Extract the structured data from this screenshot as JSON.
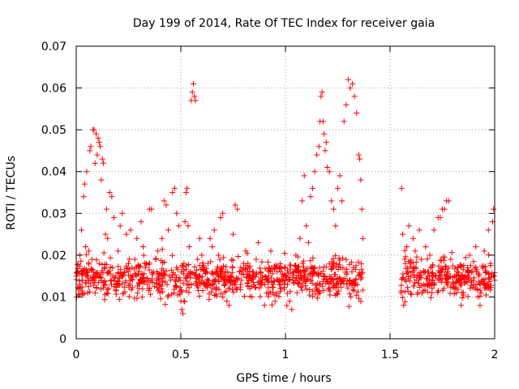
{
  "chart_data": {
    "type": "scatter",
    "title": "Day 199 of 2014, Rate Of TEC Index for receiver gaia",
    "xlabel": "GPS time / hours",
    "ylabel": "ROTI / TECUs",
    "xlim": [
      0,
      2
    ],
    "ylim": [
      0,
      0.07
    ],
    "xticks": [
      0,
      0.5,
      1,
      1.5,
      2
    ],
    "xtick_labels": [
      "0",
      "0.5",
      "1",
      "1.5",
      "2"
    ],
    "yticks": [
      0,
      0.01,
      0.02,
      0.03,
      0.04,
      0.05,
      0.06,
      0.07
    ],
    "ytick_labels": [
      "0",
      "0.01",
      "0.02",
      "0.03",
      "0.04",
      "0.05",
      "0.06",
      "0.07"
    ],
    "grid": true,
    "marker": "+",
    "color": "#ff0000",
    "data_gap": [
      1.375,
      1.55
    ],
    "series": [
      {
        "name": "ROTI",
        "points": [
          [
            0.005,
            0.016
          ],
          [
            0.012,
            0.012
          ],
          [
            0.018,
            0.02
          ],
          [
            0.025,
            0.026
          ],
          [
            0.03,
            0.014
          ],
          [
            0.035,
            0.034
          ],
          [
            0.04,
            0.037
          ],
          [
            0.045,
            0.022
          ],
          [
            0.05,
            0.04
          ],
          [
            0.055,
            0.011
          ],
          [
            0.06,
            0.021
          ],
          [
            0.065,
            0.045
          ],
          [
            0.07,
            0.046
          ],
          [
            0.075,
            0.019
          ],
          [
            0.08,
            0.05
          ],
          [
            0.085,
            0.05
          ],
          [
            0.09,
            0.042
          ],
          [
            0.095,
            0.049
          ],
          [
            0.1,
            0.044
          ],
          [
            0.105,
            0.048
          ],
          [
            0.11,
            0.047
          ],
          [
            0.115,
            0.046
          ],
          [
            0.12,
            0.038
          ],
          [
            0.125,
            0.043
          ],
          [
            0.13,
            0.042
          ],
          [
            0.135,
            0.017
          ],
          [
            0.14,
            0.025
          ],
          [
            0.145,
            0.031
          ],
          [
            0.15,
            0.024
          ],
          [
            0.16,
            0.035
          ],
          [
            0.17,
            0.034
          ],
          [
            0.18,
            0.029
          ],
          [
            0.19,
            0.013
          ],
          [
            0.2,
            0.021
          ],
          [
            0.21,
            0.027
          ],
          [
            0.22,
            0.03
          ],
          [
            0.23,
            0.016
          ],
          [
            0.24,
            0.025
          ],
          [
            0.25,
            0.018
          ],
          [
            0.26,
            0.026
          ],
          [
            0.27,
            0.015
          ],
          [
            0.28,
            0.019
          ],
          [
            0.29,
            0.024
          ],
          [
            0.3,
            0.012
          ],
          [
            0.31,
            0.028
          ],
          [
            0.32,
            0.022
          ],
          [
            0.33,
            0.017
          ],
          [
            0.34,
            0.013
          ],
          [
            0.35,
            0.031
          ],
          [
            0.36,
            0.031
          ],
          [
            0.37,
            0.016
          ],
          [
            0.38,
            0.019
          ],
          [
            0.39,
            0.021
          ],
          [
            0.4,
            0.011
          ],
          [
            0.41,
            0.024
          ],
          [
            0.42,
            0.033
          ],
          [
            0.43,
            0.032
          ],
          [
            0.44,
            0.026
          ],
          [
            0.45,
            0.014
          ],
          [
            0.46,
            0.035
          ],
          [
            0.47,
            0.036
          ],
          [
            0.48,
            0.03
          ],
          [
            0.49,
            0.027
          ],
          [
            0.5,
            0.009
          ],
          [
            0.505,
            0.007
          ],
          [
            0.51,
            0.006
          ],
          [
            0.515,
            0.018
          ],
          [
            0.52,
            0.028
          ],
          [
            0.525,
            0.035
          ],
          [
            0.53,
            0.036
          ],
          [
            0.535,
            0.027
          ],
          [
            0.54,
            0.022
          ],
          [
            0.545,
            0.016
          ],
          [
            0.55,
            0.057
          ],
          [
            0.555,
            0.059
          ],
          [
            0.56,
            0.061
          ],
          [
            0.565,
            0.058
          ],
          [
            0.57,
            0.057
          ],
          [
            0.58,
            0.019
          ],
          [
            0.59,
            0.024
          ],
          [
            0.6,
            0.02
          ],
          [
            0.61,
            0.013
          ],
          [
            0.62,
            0.016
          ],
          [
            0.63,
            0.018
          ],
          [
            0.64,
            0.024
          ],
          [
            0.65,
            0.022
          ],
          [
            0.66,
            0.026
          ],
          [
            0.67,
            0.012
          ],
          [
            0.68,
            0.02
          ],
          [
            0.69,
            0.029
          ],
          [
            0.7,
            0.03
          ],
          [
            0.71,
            0.013
          ],
          [
            0.72,
            0.009
          ],
          [
            0.73,
            0.008
          ],
          [
            0.74,
            0.015
          ],
          [
            0.75,
            0.025
          ],
          [
            0.76,
            0.032
          ],
          [
            0.77,
            0.031
          ],
          [
            0.78,
            0.016
          ],
          [
            0.79,
            0.014
          ],
          [
            0.8,
            0.018
          ],
          [
            0.81,
            0.021
          ],
          [
            0.82,
            0.017
          ],
          [
            0.83,
            0.012
          ],
          [
            0.84,
            0.01
          ],
          [
            0.85,
            0.015
          ],
          [
            0.86,
            0.019
          ],
          [
            0.87,
            0.023
          ],
          [
            0.88,
            0.016
          ],
          [
            0.89,
            0.014
          ],
          [
            0.9,
            0.008
          ],
          [
            0.91,
            0.011
          ],
          [
            0.92,
            0.017
          ],
          [
            0.93,
            0.021
          ],
          [
            0.94,
            0.013
          ],
          [
            0.95,
            0.009
          ],
          [
            0.96,
            0.016
          ],
          [
            0.97,
            0.014
          ],
          [
            0.98,
            0.012
          ],
          [
            0.99,
            0.015
          ],
          [
            1.0,
            0.017
          ],
          [
            1.01,
            0.013
          ],
          [
            1.02,
            0.009
          ],
          [
            1.03,
            0.007
          ],
          [
            1.04,
            0.016
          ],
          [
            1.05,
            0.02
          ],
          [
            1.06,
            0.016
          ],
          [
            1.07,
            0.024
          ],
          [
            1.08,
            0.033
          ],
          [
            1.09,
            0.039
          ],
          [
            1.1,
            0.027
          ],
          [
            1.11,
            0.023
          ],
          [
            1.12,
            0.034
          ],
          [
            1.13,
            0.036
          ],
          [
            1.14,
            0.04
          ],
          [
            1.15,
            0.044
          ],
          [
            1.16,
            0.046
          ],
          [
            1.165,
            0.052
          ],
          [
            1.17,
            0.058
          ],
          [
            1.175,
            0.059
          ],
          [
            1.18,
            0.052
          ],
          [
            1.185,
            0.049
          ],
          [
            1.19,
            0.045
          ],
          [
            1.195,
            0.047
          ],
          [
            1.2,
            0.041
          ],
          [
            1.21,
            0.04
          ],
          [
            1.22,
            0.033
          ],
          [
            1.23,
            0.031
          ],
          [
            1.24,
            0.027
          ],
          [
            1.25,
            0.036
          ],
          [
            1.26,
            0.039
          ],
          [
            1.27,
            0.033
          ],
          [
            1.28,
            0.052
          ],
          [
            1.29,
            0.056
          ],
          [
            1.3,
            0.062
          ],
          [
            1.31,
            0.06
          ],
          [
            1.32,
            0.061
          ],
          [
            1.33,
            0.058
          ],
          [
            1.34,
            0.054
          ],
          [
            1.35,
            0.044
          ],
          [
            1.355,
            0.043
          ],
          [
            1.36,
            0.038
          ],
          [
            1.365,
            0.031
          ],
          [
            1.37,
            0.024
          ],
          [
            1.555,
            0.036
          ],
          [
            1.56,
            0.025
          ],
          [
            1.565,
            0.008
          ],
          [
            1.57,
            0.019
          ],
          [
            1.58,
            0.022
          ],
          [
            1.59,
            0.027
          ],
          [
            1.6,
            0.018
          ],
          [
            1.61,
            0.024
          ],
          [
            1.62,
            0.021
          ],
          [
            1.63,
            0.015
          ],
          [
            1.64,
            0.026
          ],
          [
            1.65,
            0.019
          ],
          [
            1.66,
            0.013
          ],
          [
            1.67,
            0.022
          ],
          [
            1.68,
            0.016
          ],
          [
            1.69,
            0.02
          ],
          [
            1.7,
            0.011
          ],
          [
            1.71,
            0.026
          ],
          [
            1.72,
            0.015
          ],
          [
            1.73,
            0.029
          ],
          [
            1.74,
            0.029
          ],
          [
            1.75,
            0.031
          ],
          [
            1.76,
            0.031
          ],
          [
            1.77,
            0.033
          ],
          [
            1.78,
            0.033
          ],
          [
            1.79,
            0.019
          ],
          [
            1.8,
            0.013
          ],
          [
            1.81,
            0.012
          ],
          [
            1.82,
            0.016
          ],
          [
            1.83,
            0.014
          ],
          [
            1.84,
            0.008
          ],
          [
            1.85,
            0.011
          ],
          [
            1.86,
            0.015
          ],
          [
            1.87,
            0.017
          ],
          [
            1.88,
            0.02
          ],
          [
            1.89,
            0.016
          ],
          [
            1.9,
            0.013
          ],
          [
            1.91,
            0.022
          ],
          [
            1.92,
            0.01
          ],
          [
            1.93,
            0.008
          ],
          [
            1.94,
            0.014
          ],
          [
            1.95,
            0.021
          ],
          [
            1.96,
            0.016
          ],
          [
            1.97,
            0.026
          ],
          [
            1.98,
            0.018
          ],
          [
            1.99,
            0.028
          ],
          [
            1.995,
            0.031
          ],
          [
            2.0,
            0.014
          ]
        ]
      }
    ],
    "band": {
      "segments": [
        [
          0.0,
          1.37
        ],
        [
          1.55,
          2.0
        ]
      ],
      "center": 0.0145,
      "spread": 0.0045
    }
  }
}
